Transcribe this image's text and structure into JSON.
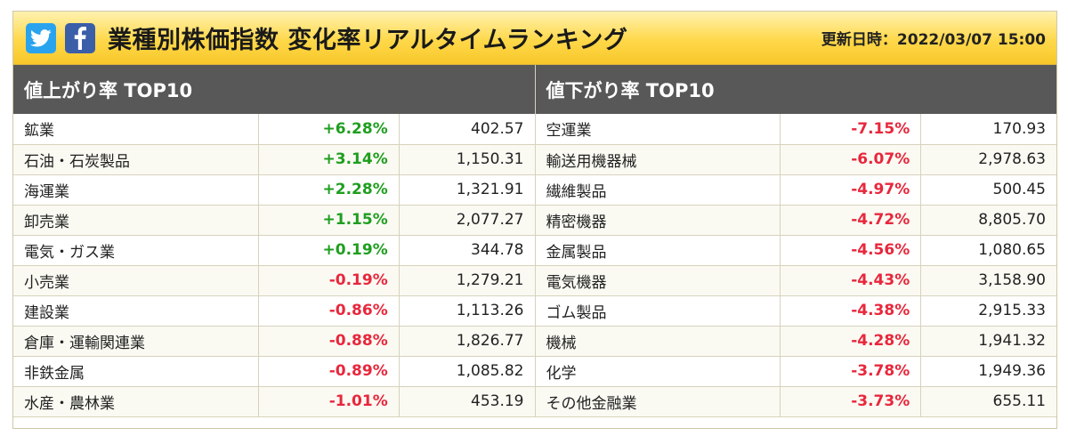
{
  "header": {
    "title": "業種別株価指数 変化率リアルタイムランキング",
    "updated_label": "更新日時：2022/03/07 15:00",
    "icons": [
      "twitter-icon",
      "facebook-icon"
    ]
  },
  "colors": {
    "up": "#1f9e1f",
    "down": "#e8273c",
    "header_bg": "#585858",
    "topbar": "#ffd84a"
  },
  "gainers": {
    "title": "値上がり率 TOP10",
    "rows": [
      {
        "name": "鉱業",
        "change": "+6.28%",
        "value": "402.57"
      },
      {
        "name": "石油・石炭製品",
        "change": "+3.14%",
        "value": "1,150.31"
      },
      {
        "name": "海運業",
        "change": "+2.28%",
        "value": "1,321.91"
      },
      {
        "name": "卸売業",
        "change": "+1.15%",
        "value": "2,077.27"
      },
      {
        "name": "電気・ガス業",
        "change": "+0.19%",
        "value": "344.78"
      },
      {
        "name": "小売業",
        "change": "-0.19%",
        "value": "1,279.21"
      },
      {
        "name": "建設業",
        "change": "-0.86%",
        "value": "1,113.26"
      },
      {
        "name": "倉庫・運輸関連業",
        "change": "-0.88%",
        "value": "1,826.77"
      },
      {
        "name": "非鉄金属",
        "change": "-0.89%",
        "value": "1,085.82"
      },
      {
        "name": "水産・農林業",
        "change": "-1.01%",
        "value": "453.19"
      }
    ]
  },
  "losers": {
    "title": "値下がり率 TOP10",
    "rows": [
      {
        "name": "空運業",
        "change": "-7.15%",
        "value": "170.93"
      },
      {
        "name": "輸送用機器械",
        "change": "-6.07%",
        "value": "2,978.63"
      },
      {
        "name": "繊維製品",
        "change": "-4.97%",
        "value": "500.45"
      },
      {
        "name": "精密機器",
        "change": "-4.72%",
        "value": "8,805.70"
      },
      {
        "name": "金属製品",
        "change": "-4.56%",
        "value": "1,080.65"
      },
      {
        "name": "電気機器",
        "change": "-4.43%",
        "value": "3,158.90"
      },
      {
        "name": "ゴム製品",
        "change": "-4.38%",
        "value": "2,915.33"
      },
      {
        "name": "機械",
        "change": "-4.28%",
        "value": "1,941.32"
      },
      {
        "name": "化学",
        "change": "-3.78%",
        "value": "1,949.36"
      },
      {
        "name": "その他金融業",
        "change": "-3.73%",
        "value": "655.11"
      }
    ]
  }
}
